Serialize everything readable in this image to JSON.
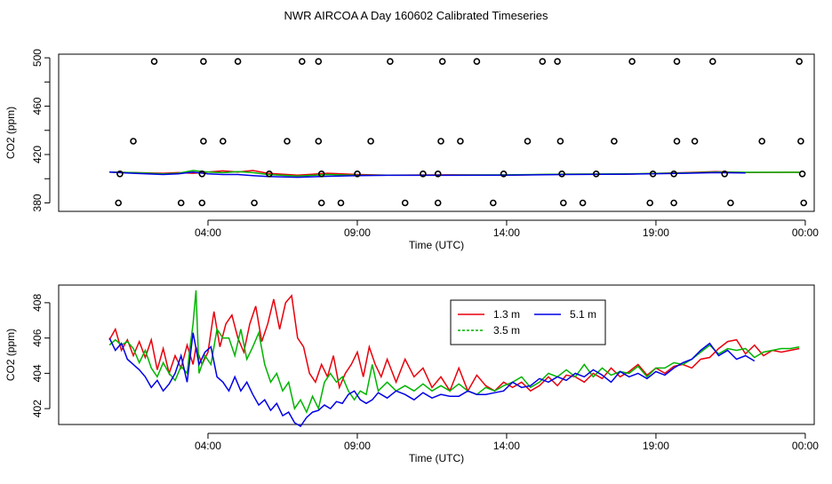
{
  "title": "NWR AIRCOA A  Day 160602  Calibrated Timeseries",
  "chart_data": [
    {
      "type": "scatter+line",
      "panel": "top",
      "xlabel": "Time (UTC)",
      "ylabel": "CO2 (ppm)",
      "xlim": [
        -1,
        24.3
      ],
      "ylim": [
        373,
        503
      ],
      "xticks": [
        {
          "value": 4,
          "label": "04:00"
        },
        {
          "value": 9,
          "label": "09:00"
        },
        {
          "value": 14,
          "label": "14:00"
        },
        {
          "value": 19,
          "label": "19:00"
        },
        {
          "value": 24,
          "label": "00:00"
        }
      ],
      "yticks": [
        {
          "value": 380,
          "label": "380"
        },
        {
          "value": 400,
          "label": ""
        },
        {
          "value": 420,
          "label": "420"
        },
        {
          "value": 440,
          "label": ""
        },
        {
          "value": 460,
          "label": "460"
        },
        {
          "value": 480,
          "label": ""
        },
        {
          "value": 500,
          "label": "500"
        }
      ],
      "calibration_points": {
        "x": [
          2.2,
          3.85,
          5.0,
          7.15,
          7.7,
          10.1,
          11.85,
          13.0,
          15.2,
          15.7,
          18.2,
          19.7,
          20.9,
          23.8,
          1.5,
          3.85,
          4.5,
          6.65,
          7.7,
          9.45,
          11.8,
          12.45,
          14.7,
          15.8,
          17.6,
          19.7,
          20.3,
          22.55,
          23.85,
          1.0,
          3.1,
          3.8,
          5.55,
          7.8,
          8.45,
          10.6,
          11.7,
          13.55,
          15.9,
          16.55,
          18.8,
          19.6,
          21.5,
          23.95,
          1.05,
          3.8,
          6.05,
          7.8,
          9.0,
          11.2,
          11.7,
          13.9,
          15.85,
          17.0,
          18.9,
          19.6,
          21.3,
          23.9
        ],
        "y": [
          497,
          497,
          497,
          497,
          497,
          497,
          497,
          497,
          497,
          497,
          497,
          497,
          497,
          497,
          431,
          431,
          431,
          431,
          431,
          431,
          431,
          431,
          431,
          431,
          431,
          431,
          431,
          431,
          431,
          380,
          380,
          380,
          380,
          380,
          380,
          380,
          380,
          380,
          380,
          380,
          380,
          380,
          380,
          380,
          404,
          404,
          404,
          404,
          404,
          404,
          404,
          404,
          404,
          404,
          404,
          404,
          404,
          404
        ]
      },
      "series": [
        {
          "name": "1.3 m",
          "color": "#e8000b",
          "x": [
            0.7,
            1.5,
            2.5,
            3.0,
            3.5,
            4.0,
            4.5,
            5.0,
            5.5,
            6.0,
            7.0,
            8.0,
            9.0,
            10.0,
            12.0,
            14.0,
            16.0,
            18.0,
            20.0,
            21.0,
            22.0,
            23.8
          ],
          "values": [
            405.5,
            405.0,
            404.5,
            405.0,
            404.5,
            405.5,
            406.5,
            405.5,
            406.8,
            404.5,
            403.0,
            404.5,
            403.5,
            403.0,
            403.2,
            403.0,
            403.8,
            403.8,
            405.0,
            405.8,
            405.2,
            405.3
          ]
        },
        {
          "name": "3.5 m",
          "color": "#00b400",
          "x": [
            0.7,
            1.5,
            2.5,
            3.0,
            3.5,
            4.0,
            4.5,
            5.0,
            5.5,
            6.0,
            7.0,
            8.0,
            9.0,
            10.0,
            12.0,
            14.0,
            16.0,
            18.0,
            20.0,
            21.0,
            22.0,
            23.8
          ],
          "values": [
            405.5,
            405.0,
            404.0,
            404.5,
            406.8,
            405.5,
            405.0,
            405.8,
            405.0,
            403.5,
            402.2,
            403.5,
            402.8,
            403.0,
            403.0,
            403.2,
            403.8,
            404.0,
            404.8,
            405.5,
            405.3,
            405.3
          ]
        },
        {
          "name": "5.1 m",
          "color": "#0000e6",
          "x": [
            0.7,
            1.5,
            2.5,
            3.0,
            3.5,
            4.0,
            4.5,
            5.0,
            5.5,
            6.0,
            7.0,
            8.0,
            9.0,
            10.0,
            12.0,
            14.0,
            16.0,
            18.0,
            20.0,
            21.0,
            22.0
          ],
          "values": [
            405.5,
            404.5,
            403.5,
            404.0,
            405.5,
            404.0,
            403.5,
            403.5,
            402.5,
            401.8,
            401.2,
            402.0,
            402.5,
            402.8,
            402.8,
            402.9,
            403.5,
            403.8,
            404.5,
            405.0,
            404.8
          ]
        }
      ]
    },
    {
      "type": "line",
      "panel": "bottom",
      "xlabel": "Time (UTC)",
      "ylabel": "CO2 (ppm)",
      "xlim": [
        -1,
        24.3
      ],
      "ylim": [
        401.1,
        409.0
      ],
      "xticks": [
        {
          "value": 4,
          "label": "04:00"
        },
        {
          "value": 9,
          "label": "09:00"
        },
        {
          "value": 14,
          "label": "14:00"
        },
        {
          "value": 19,
          "label": "19:00"
        },
        {
          "value": 24,
          "label": "00:00"
        }
      ],
      "yticks": [
        {
          "value": 402,
          "label": "402"
        },
        {
          "value": 404,
          "label": "404"
        },
        {
          "value": 406,
          "label": "406"
        },
        {
          "value": 408,
          "label": "408"
        }
      ],
      "legend": {
        "position": "top-center",
        "entries": [
          "1.3 m",
          "3.5 m",
          "5.1 m"
        ]
      },
      "series": [
        {
          "name": "1.3 m",
          "color": "#e8000b",
          "x": [
            0.7,
            0.9,
            1.1,
            1.3,
            1.5,
            1.7,
            1.9,
            2.1,
            2.3,
            2.5,
            2.7,
            2.9,
            3.1,
            3.3,
            3.5,
            3.6,
            3.8,
            4.0,
            4.2,
            4.4,
            4.6,
            4.8,
            5.0,
            5.2,
            5.4,
            5.6,
            5.8,
            6.0,
            6.2,
            6.4,
            6.6,
            6.8,
            7.0,
            7.2,
            7.4,
            7.6,
            7.8,
            8.0,
            8.2,
            8.4,
            8.6,
            8.8,
            9.0,
            9.2,
            9.4,
            9.6,
            9.8,
            10.0,
            10.3,
            10.6,
            10.9,
            11.2,
            11.5,
            11.8,
            12.1,
            12.4,
            12.7,
            13.0,
            13.3,
            13.6,
            13.9,
            14.2,
            14.5,
            14.8,
            15.1,
            15.4,
            15.7,
            16.0,
            16.3,
            16.6,
            16.9,
            17.2,
            17.5,
            17.8,
            18.1,
            18.4,
            18.7,
            19.0,
            19.3,
            19.6,
            19.9,
            20.2,
            20.5,
            20.8,
            21.1,
            21.4,
            21.7,
            22.0,
            22.3,
            22.6,
            22.9,
            23.2,
            23.5,
            23.8
          ],
          "values": [
            405.9,
            406.5,
            405.3,
            405.9,
            405.0,
            405.8,
            404.9,
            405.9,
            404.2,
            405.4,
            404.0,
            405.0,
            404.3,
            405.6,
            404.5,
            405.5,
            404.5,
            405.2,
            407.5,
            405.5,
            406.8,
            407.3,
            406.0,
            405.2,
            406.8,
            407.8,
            405.8,
            406.8,
            408.2,
            406.5,
            408.0,
            408.4,
            406.0,
            405.5,
            404.0,
            403.5,
            404.5,
            403.8,
            405.0,
            403.2,
            404.0,
            404.5,
            405.2,
            403.8,
            405.5,
            404.5,
            403.8,
            404.8,
            403.5,
            404.8,
            403.8,
            404.3,
            403.2,
            403.8,
            403.0,
            404.3,
            403.0,
            403.9,
            403.3,
            403.0,
            403.5,
            403.2,
            403.5,
            403.0,
            403.3,
            403.8,
            403.3,
            403.9,
            403.8,
            403.5,
            404.0,
            403.7,
            404.3,
            403.8,
            404.1,
            404.5,
            403.9,
            404.3,
            404.0,
            404.4,
            404.5,
            404.3,
            404.8,
            404.9,
            405.4,
            405.8,
            405.9,
            405.1,
            405.6,
            405.0,
            405.3,
            405.2,
            405.3,
            405.4
          ]
        },
        {
          "name": "3.5 m",
          "color": "#00b400",
          "x": [
            0.7,
            0.9,
            1.1,
            1.3,
            1.5,
            1.7,
            1.9,
            2.1,
            2.3,
            2.5,
            2.7,
            2.9,
            3.1,
            3.3,
            3.4,
            3.5,
            3.6,
            3.7,
            3.9,
            4.1,
            4.3,
            4.5,
            4.7,
            4.9,
            5.1,
            5.3,
            5.5,
            5.7,
            5.9,
            6.1,
            6.3,
            6.5,
            6.7,
            6.9,
            7.1,
            7.3,
            7.5,
            7.7,
            7.9,
            8.1,
            8.3,
            8.5,
            8.7,
            8.9,
            9.1,
            9.3,
            9.5,
            9.7,
            10.0,
            10.3,
            10.6,
            10.9,
            11.2,
            11.5,
            11.8,
            12.1,
            12.4,
            12.7,
            13.0,
            13.3,
            13.6,
            13.9,
            14.2,
            14.5,
            14.8,
            15.1,
            15.4,
            15.7,
            16.0,
            16.3,
            16.6,
            16.9,
            17.2,
            17.5,
            17.8,
            18.1,
            18.4,
            18.7,
            19.0,
            19.3,
            19.6,
            19.9,
            20.2,
            20.5,
            20.8,
            21.1,
            21.4,
            21.7,
            22.0,
            22.3,
            22.6,
            22.9,
            23.2,
            23.5,
            23.8
          ],
          "values": [
            405.6,
            405.9,
            405.6,
            405.8,
            405.4,
            404.6,
            405.3,
            404.3,
            403.8,
            404.6,
            404.0,
            403.6,
            404.4,
            404.0,
            405.5,
            406.8,
            408.7,
            404.0,
            405.0,
            404.5,
            406.5,
            406.0,
            406.0,
            405.0,
            406.5,
            404.8,
            405.5,
            406.3,
            404.5,
            403.5,
            404.0,
            403.0,
            403.5,
            402.0,
            402.5,
            401.8,
            402.7,
            402.0,
            403.5,
            404.0,
            403.5,
            403.8,
            403.0,
            402.5,
            403.0,
            402.8,
            404.5,
            403.0,
            403.5,
            403.0,
            403.3,
            403.0,
            403.4,
            403.0,
            403.3,
            403.0,
            403.4,
            403.0,
            402.8,
            403.2,
            403.0,
            403.3,
            403.5,
            403.8,
            403.2,
            403.5,
            404.0,
            403.8,
            404.2,
            403.8,
            404.5,
            403.8,
            404.3,
            403.9,
            404.1,
            404.0,
            404.4,
            403.8,
            404.3,
            404.3,
            404.6,
            404.5,
            404.8,
            405.2,
            405.6,
            405.1,
            405.4,
            405.3,
            405.4,
            404.9,
            405.2,
            405.3,
            405.4,
            405.4,
            405.5
          ]
        },
        {
          "name": "5.1 m",
          "color": "#0000e6",
          "x": [
            0.7,
            0.9,
            1.1,
            1.3,
            1.5,
            1.7,
            1.9,
            2.1,
            2.3,
            2.5,
            2.7,
            2.9,
            3.1,
            3.3,
            3.5,
            3.7,
            3.9,
            4.1,
            4.3,
            4.5,
            4.7,
            4.9,
            5.1,
            5.3,
            5.5,
            5.7,
            5.9,
            6.1,
            6.3,
            6.5,
            6.7,
            6.9,
            7.1,
            7.3,
            7.5,
            7.7,
            7.9,
            8.1,
            8.3,
            8.5,
            8.7,
            8.9,
            9.1,
            9.3,
            9.5,
            9.7,
            10.0,
            10.3,
            10.6,
            10.9,
            11.2,
            11.5,
            11.8,
            12.1,
            12.4,
            12.7,
            13.0,
            13.3,
            13.6,
            13.9,
            14.2,
            14.5,
            14.8,
            15.1,
            15.4,
            15.7,
            16.0,
            16.3,
            16.6,
            16.9,
            17.2,
            17.5,
            17.8,
            18.1,
            18.4,
            18.7,
            19.0,
            19.3,
            19.6,
            19.9,
            20.2,
            20.5,
            20.8,
            21.1,
            21.4,
            21.7,
            22.0,
            22.3
          ],
          "values": [
            406.0,
            405.3,
            405.7,
            404.8,
            404.5,
            404.2,
            403.8,
            403.2,
            403.6,
            403.0,
            403.4,
            404.0,
            405.0,
            403.5,
            406.3,
            404.5,
            405.2,
            405.5,
            403.8,
            403.5,
            403.0,
            403.8,
            403.0,
            403.5,
            402.8,
            402.2,
            402.5,
            401.9,
            402.3,
            401.6,
            401.8,
            401.2,
            401.0,
            401.5,
            401.8,
            401.9,
            402.2,
            402.0,
            402.4,
            402.3,
            402.8,
            403.0,
            402.5,
            402.3,
            402.5,
            402.9,
            402.6,
            403.0,
            402.8,
            402.5,
            402.9,
            402.6,
            402.8,
            402.7,
            402.7,
            403.0,
            402.8,
            402.8,
            402.9,
            403.0,
            403.5,
            403.2,
            403.3,
            403.7,
            403.5,
            403.8,
            403.6,
            404.0,
            403.8,
            404.2,
            403.9,
            403.5,
            404.1,
            403.8,
            404.0,
            403.7,
            404.1,
            403.9,
            404.3,
            404.6,
            404.8,
            405.3,
            405.7,
            405.0,
            405.3,
            404.8,
            405.0,
            404.7
          ]
        }
      ]
    }
  ]
}
